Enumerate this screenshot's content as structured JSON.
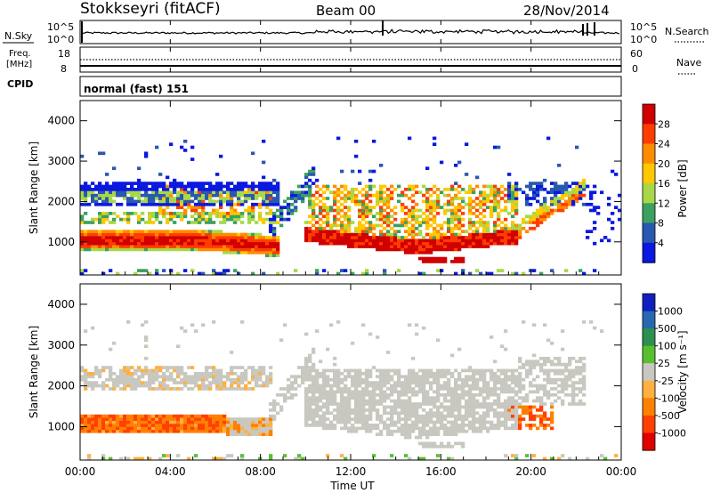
{
  "header": {
    "station": "Stokkseyri (fitACF)",
    "beam": "Beam 00",
    "date": "28/Nov/2014"
  },
  "strip_panels": {
    "nsky": {
      "label": "N.Sky",
      "scale_top": "10^5",
      "scale_bottom": "10^0",
      "right_label": "N.Search",
      "right_top": "10^5",
      "right_bottom": "10^0"
    },
    "freq": {
      "label_line1": "Freq.",
      "label_line2": "[MHz]",
      "ticks": [
        "18",
        "8"
      ],
      "right_label": "Nave",
      "right_ticks": [
        "60",
        "0"
      ]
    },
    "cpid": {
      "label": "CPID",
      "text": "normal (fast) 151"
    }
  },
  "chart_data": [
    {
      "type": "heatmap",
      "name": "power",
      "ylabel": "Slant Range [km]",
      "xlabel": "",
      "ylim": [
        180,
        4500
      ],
      "yticks": [
        1000,
        2000,
        3000,
        4000
      ],
      "xticks": [
        "00:00",
        "04:00",
        "08:00",
        "12:00",
        "16:00",
        "20:00",
        "00:00"
      ],
      "colorbar": {
        "label": "Power [dB]",
        "ticks": [
          "28",
          "24",
          "20",
          "16",
          "12",
          "8",
          "4"
        ],
        "colors": [
          "#d00000",
          "#ff3c00",
          "#ff8c00",
          "#ffc800",
          "#a8d848",
          "#3ca060",
          "#2858b0",
          "#0a18e0"
        ]
      }
    },
    {
      "type": "heatmap",
      "name": "velocity",
      "ylabel": "Slant Range [km]",
      "xlabel": "Time UT",
      "ylim": [
        180,
        4500
      ],
      "yticks": [
        1000,
        2000,
        3000,
        4000
      ],
      "xticks": [
        "00:00",
        "04:00",
        "08:00",
        "12:00",
        "16:00",
        "20:00",
        "00:00"
      ],
      "colorbar": {
        "label": "Velocity [m s⁻¹]",
        "ticks": [
          "1000",
          "500",
          "100",
          "25",
          "-25",
          "-100",
          "-500",
          "-1000"
        ],
        "colors": [
          "#1020c0",
          "#2868b0",
          "#2c9050",
          "#58c030",
          "#c8c8c0",
          "#ffb040",
          "#ff8000",
          "#ff4000",
          "#e00000"
        ]
      }
    }
  ]
}
